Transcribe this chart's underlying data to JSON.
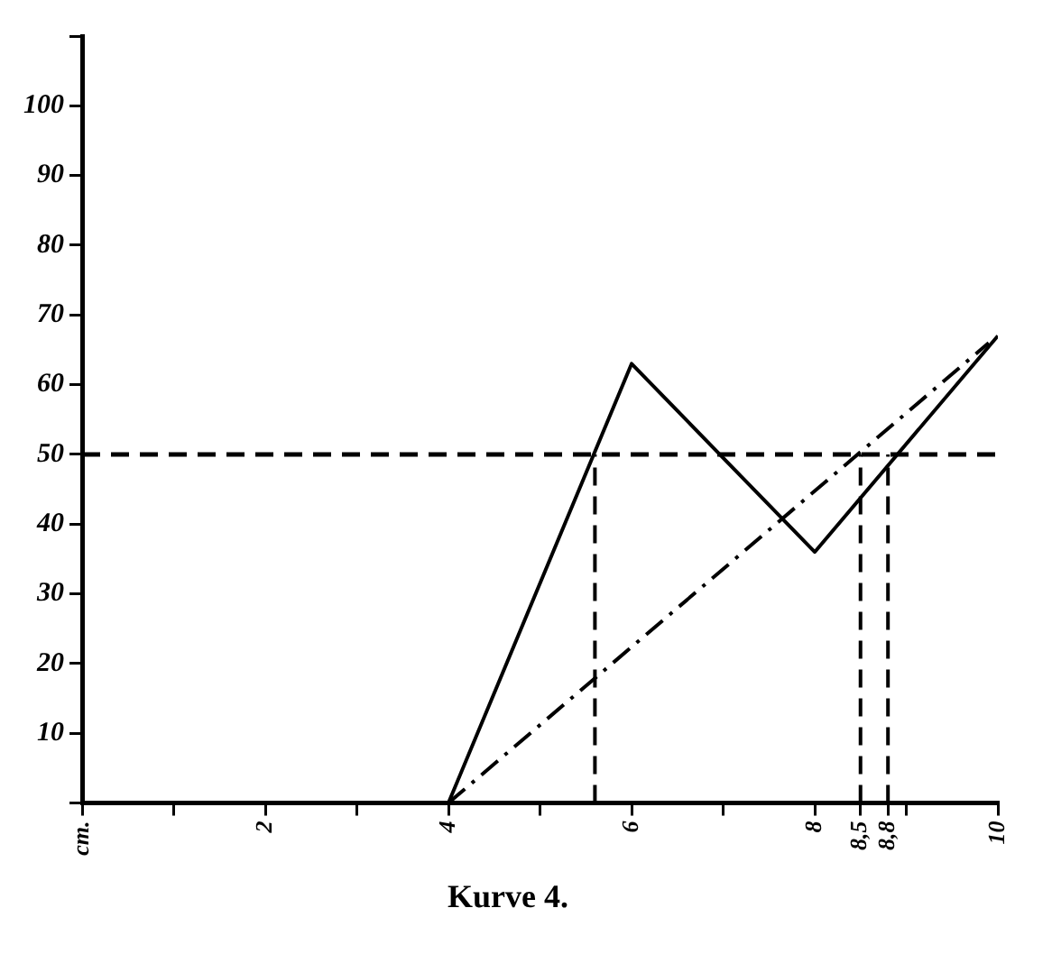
{
  "chart_data": {
    "type": "line",
    "title": "Kurve 4.",
    "xlim": [
      0,
      10
    ],
    "xticks": [
      {
        "value": 0,
        "label": "cm."
      },
      {
        "value": 1,
        "label": null
      },
      2,
      {
        "value": 3,
        "label": null
      },
      4,
      {
        "value": 5,
        "label": null
      },
      6,
      {
        "value": 7,
        "label": null
      },
      8,
      {
        "value": 8.5,
        "label": "8,5"
      },
      {
        "value": 8.8,
        "label": "8,8"
      },
      {
        "value": 9,
        "label": null
      },
      10
    ],
    "ylim": [
      0,
      110
    ],
    "yticks": [
      {
        "value": 0,
        "label": null
      },
      10,
      20,
      30,
      40,
      50,
      60,
      70,
      80,
      90,
      100,
      {
        "value": 110,
        "label": null
      }
    ],
    "grid": false,
    "legend": false,
    "marker": "none",
    "ref_lines": [
      {
        "axis": "y",
        "value": 50,
        "color": "#000000",
        "line_style": "dashed"
      }
    ],
    "series": [
      {
        "color": "#000000",
        "line_style": "solid",
        "x": [
          2.2,
          4,
          6,
          8,
          10
        ],
        "values": [
          0,
          0,
          63,
          36,
          67
        ]
      },
      {
        "color": "#000000",
        "line_style": "dashdot",
        "x": [
          4,
          9.9
        ],
        "values": [
          0,
          66
        ]
      },
      {
        "color": "#000000",
        "line_style": "dashed",
        "x": [
          5.6,
          5.6
        ],
        "values": [
          0,
          50
        ]
      },
      {
        "color": "#000000",
        "line_style": "dashed",
        "x": [
          8.5,
          8.5
        ],
        "values": [
          0,
          50
        ]
      },
      {
        "color": "#000000",
        "line_style": "dashed",
        "x": [
          8.8,
          8.8
        ],
        "values": [
          0,
          50
        ]
      }
    ]
  }
}
